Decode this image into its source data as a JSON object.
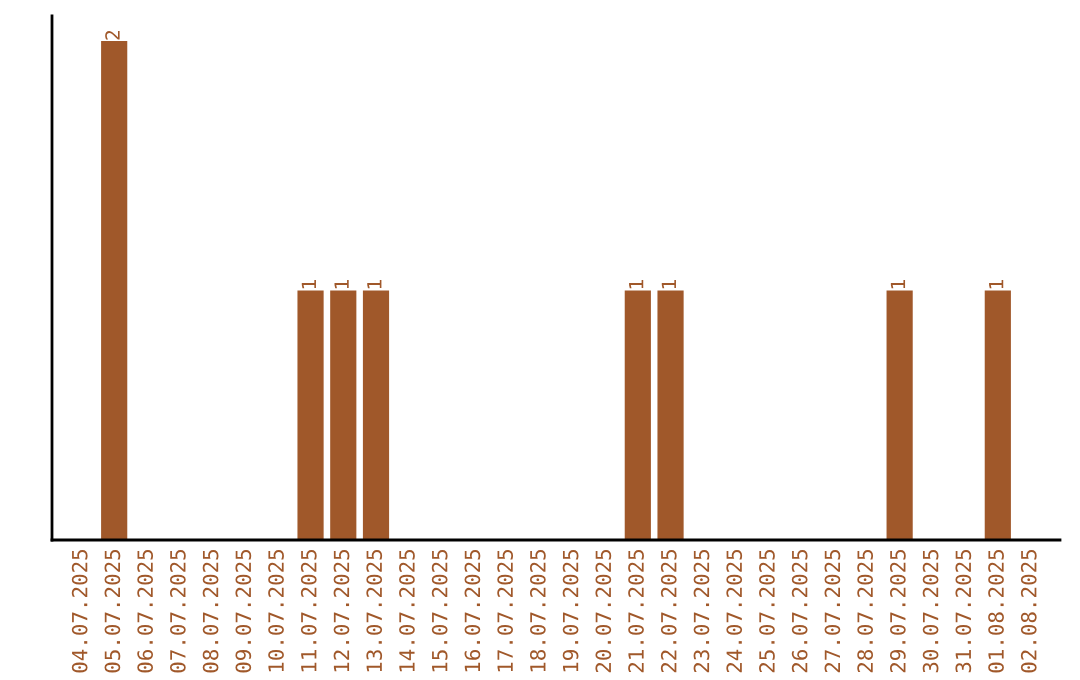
{
  "chart_data": {
    "type": "bar",
    "categories": [
      "04.07.2025",
      "05.07.2025",
      "06.07.2025",
      "07.07.2025",
      "08.07.2025",
      "09.07.2025",
      "10.07.2025",
      "11.07.2025",
      "12.07.2025",
      "13.07.2025",
      "14.07.2025",
      "15.07.2025",
      "16.07.2025",
      "17.07.2025",
      "18.07.2025",
      "19.07.2025",
      "20.07.2025",
      "21.07.2025",
      "22.07.2025",
      "23.07.2025",
      "24.07.2025",
      "25.07.2025",
      "26.07.2025",
      "27.07.2025",
      "28.07.2025",
      "29.07.2025",
      "30.07.2025",
      "31.07.2025",
      "01.08.2025",
      "02.08.2025"
    ],
    "values": [
      0,
      2,
      0,
      0,
      0,
      0,
      0,
      1,
      1,
      1,
      0,
      0,
      0,
      0,
      0,
      0,
      0,
      1,
      1,
      0,
      0,
      0,
      0,
      0,
      0,
      1,
      0,
      0,
      1,
      0
    ],
    "value_labels": [
      null,
      "2",
      null,
      null,
      null,
      null,
      null,
      "1",
      "1",
      "1",
      null,
      null,
      null,
      null,
      null,
      null,
      null,
      "1",
      "1",
      null,
      null,
      null,
      null,
      null,
      null,
      "1",
      null,
      null,
      "1",
      null
    ],
    "color": "#a0582a",
    "grid": false,
    "legend": false
  }
}
